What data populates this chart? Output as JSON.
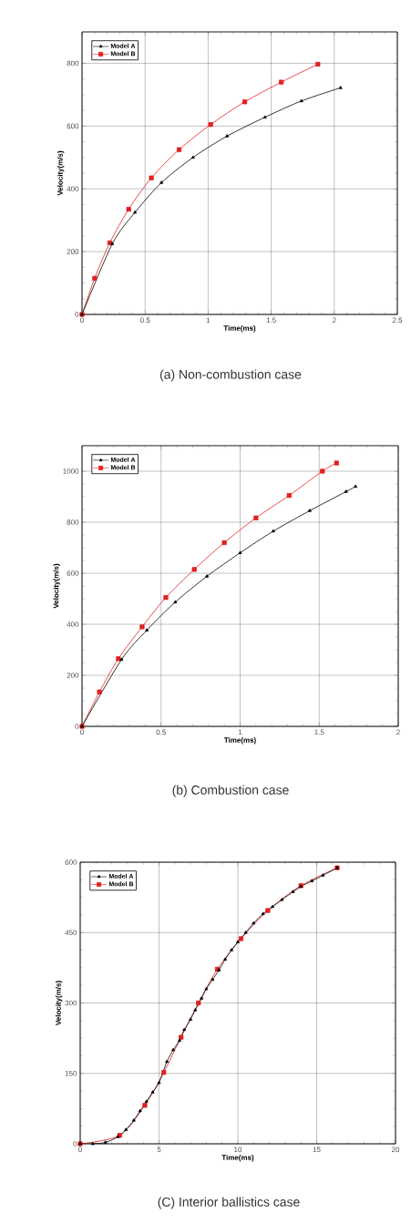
{
  "chart_data": [
    {
      "type": "line",
      "xlabel": "Time(ms)",
      "ylabel": "Velocity(m/s)",
      "xlim": [
        0,
        2.5
      ],
      "ylim": [
        0,
        900
      ],
      "xticks": [
        0,
        0.5,
        1,
        1.5,
        2,
        2.5
      ],
      "yticks": [
        0,
        200,
        400,
        600,
        800
      ],
      "grid": true,
      "legend": "top left",
      "annotations": [
        "(a)  Non-combustion  case"
      ],
      "series": [
        {
          "name": "Model A",
          "color": "#000000",
          "marker": "triangle",
          "x": [
            0,
            0.24,
            0.42,
            0.63,
            0.88,
            1.15,
            1.45,
            1.74,
            2.05
          ],
          "values": [
            0,
            225,
            325,
            420,
            500,
            568,
            628,
            680,
            722
          ]
        },
        {
          "name": "Model B",
          "color": "#e02020",
          "marker": "square",
          "x": [
            0,
            0.1,
            0.22,
            0.37,
            0.55,
            0.77,
            1.02,
            1.29,
            1.58,
            1.87
          ],
          "values": [
            0,
            115,
            228,
            335,
            435,
            525,
            605,
            677,
            740,
            797
          ]
        }
      ]
    },
    {
      "type": "line",
      "xlabel": "Time(ms)",
      "ylabel": "Velocity(m/s)",
      "xlim": [
        0,
        2
      ],
      "ylim": [
        0,
        1100
      ],
      "xticks": [
        0,
        0.5,
        1,
        1.5,
        2
      ],
      "yticks": [
        0,
        200,
        400,
        600,
        800,
        1000
      ],
      "grid": true,
      "legend": "top left",
      "annotations": [
        "(b)  Combustion  case"
      ],
      "series": [
        {
          "name": "Model A",
          "color": "#000000",
          "marker": "triangle",
          "x": [
            0,
            0.25,
            0.41,
            0.59,
            0.79,
            1.0,
            1.21,
            1.44,
            1.67,
            1.73
          ],
          "values": [
            0,
            262,
            377,
            487,
            588,
            680,
            765,
            845,
            920,
            940
          ]
        },
        {
          "name": "Model B",
          "color": "#e02020",
          "marker": "square",
          "x": [
            0,
            0.11,
            0.23,
            0.38,
            0.53,
            0.71,
            0.9,
            1.1,
            1.31,
            1.52,
            1.61
          ],
          "values": [
            0,
            135,
            265,
            390,
            505,
            615,
            720,
            817,
            905,
            1000,
            1032
          ]
        }
      ]
    },
    {
      "type": "line",
      "xlabel": "Time(ms)",
      "ylabel": "Velocity(m/s)",
      "xlim": [
        0,
        20
      ],
      "ylim": [
        0,
        600
      ],
      "xticks": [
        0,
        5,
        10,
        15,
        20
      ],
      "yticks": [
        0,
        150,
        300,
        450,
        600
      ],
      "grid": true,
      "legend": "top left",
      "annotations": [
        "(C)  Interior  ballistics  case"
      ],
      "series": [
        {
          "name": "Model A",
          "color": "#000000",
          "marker": "triangle",
          "x": [
            0,
            0.8,
            1.6,
            2.4,
            2.9,
            3.4,
            3.8,
            4.2,
            4.6,
            5.0,
            5.5,
            5.9,
            6.3,
            6.6,
            7.0,
            7.3,
            7.7,
            8.0,
            8.4,
            8.8,
            9.2,
            9.6,
            10.0,
            10.5,
            11.0,
            11.6,
            12.2,
            12.8,
            13.5,
            14.0,
            14.7,
            15.4,
            16.3
          ],
          "values": [
            0,
            0,
            3,
            15,
            30,
            50,
            70,
            90,
            110,
            130,
            175,
            200,
            220,
            243,
            265,
            285,
            310,
            330,
            350,
            370,
            393,
            413,
            430,
            450,
            470,
            490,
            505,
            520,
            537,
            548,
            560,
            572,
            588
          ]
        },
        {
          "name": "Model B",
          "color": "#e02020",
          "marker": "square",
          "x": [
            0,
            2.5,
            4.1,
            5.3,
            6.4,
            7.5,
            8.7,
            10.2,
            11.9,
            14.0,
            16.3
          ],
          "values": [
            0,
            18,
            82,
            152,
            227,
            300,
            372,
            437,
            497,
            550,
            588
          ]
        }
      ]
    }
  ]
}
